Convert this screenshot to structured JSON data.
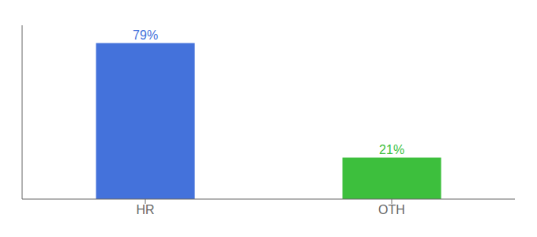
{
  "chart_data": {
    "type": "bar",
    "categories": [
      "HR",
      "OTH"
    ],
    "values": [
      79,
      21
    ],
    "value_labels": [
      "79%",
      "21%"
    ],
    "colors": [
      "#4472db",
      "#3dbf3d"
    ],
    "ylim": [
      0,
      88
    ],
    "data_labels": true,
    "tick_labels": "x"
  }
}
